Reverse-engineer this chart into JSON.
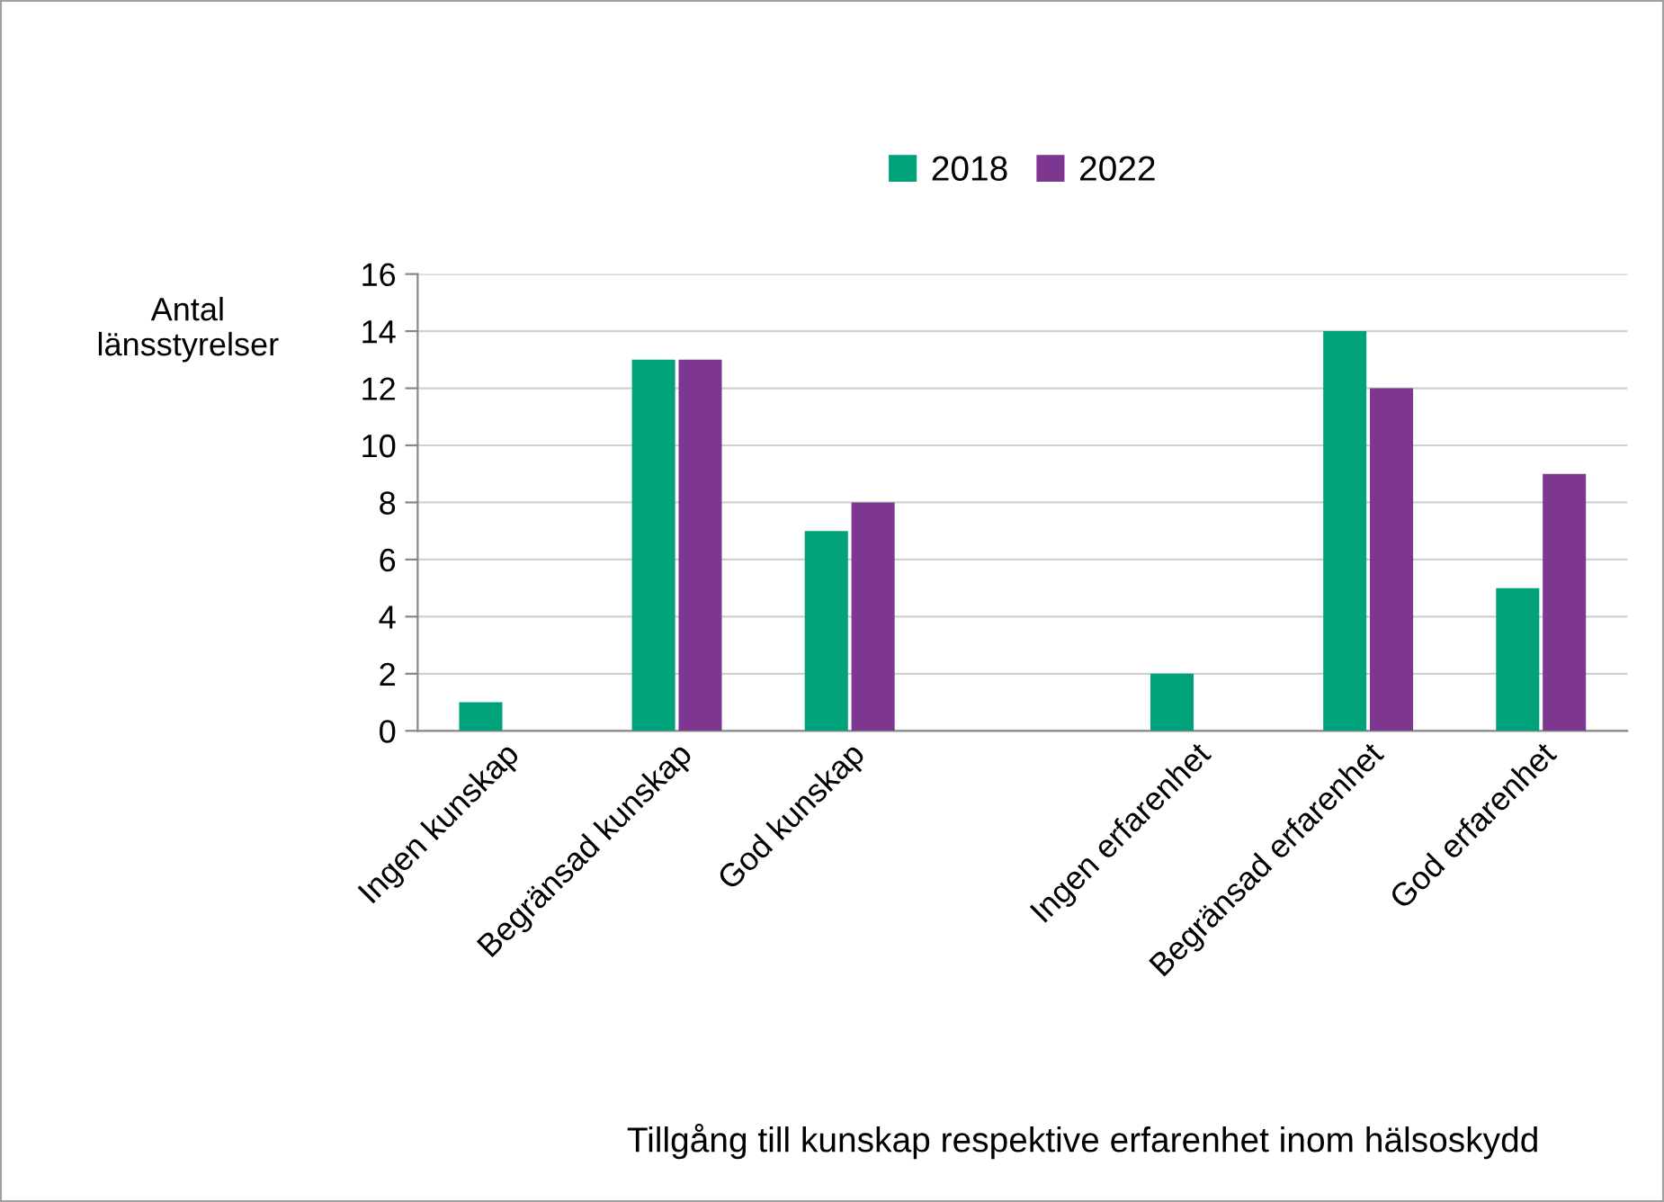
{
  "chart_data": {
    "type": "bar",
    "categories": [
      "Ingen kunskap",
      "Begränsad kunskap",
      "God kunskap",
      null,
      "Ingen erfarenhet",
      "Begränsad erfarenhet",
      "God erfarenhet"
    ],
    "series": [
      {
        "name": "2018",
        "color": "#00a27c",
        "values": [
          1,
          13,
          7,
          null,
          2,
          14,
          5
        ]
      },
      {
        "name": "2022",
        "color": "#7e3790",
        "values": [
          0,
          13,
          8,
          null,
          0,
          12,
          9
        ]
      }
    ],
    "ylabel": "Antal\nlänsstyrelser",
    "xlabel": "Tillgång till kunskap respektive erfarenhet inom hälsoskydd",
    "ylim": [
      0,
      16
    ],
    "yticks": [
      0,
      2,
      4,
      6,
      8,
      10,
      12,
      14,
      16
    ],
    "grid": "y",
    "legend": "top"
  }
}
